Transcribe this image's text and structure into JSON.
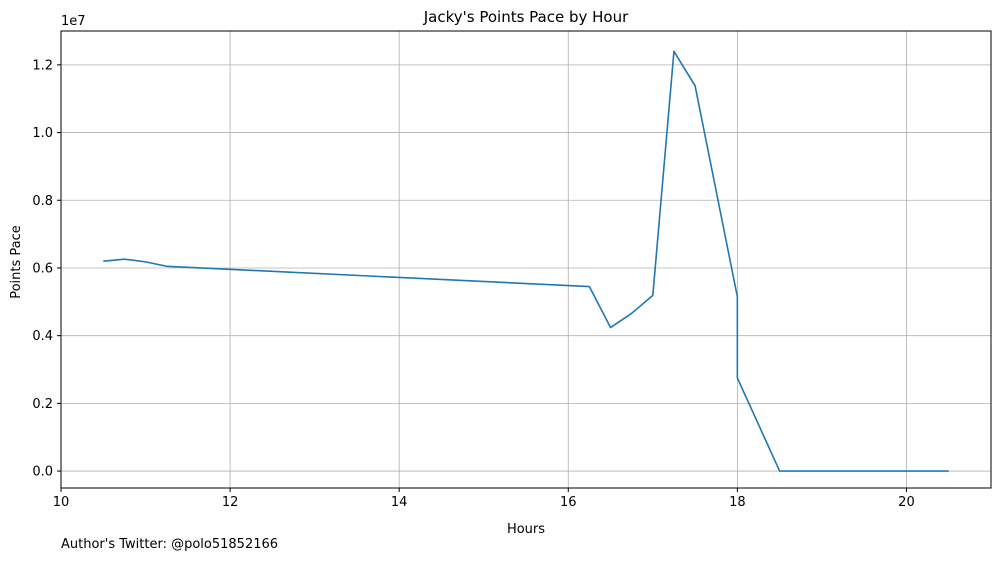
{
  "chart_data": {
    "type": "line",
    "title": "Jacky's Points Pace by Hour",
    "xlabel": "Hours",
    "ylabel": "Points Pace",
    "offset_label": "1e7",
    "xlim": [
      10,
      21
    ],
    "ylim": [
      -0.05,
      1.3
    ],
    "y_scale_multiplier": 10000000,
    "grid": true,
    "x_ticks": [
      10,
      12,
      14,
      16,
      18,
      20
    ],
    "x_tick_labels": [
      "10",
      "12",
      "14",
      "16",
      "18",
      "20"
    ],
    "y_ticks": [
      0.0,
      0.2,
      0.4,
      0.6,
      0.8,
      1.0,
      1.2
    ],
    "y_tick_labels": [
      "0.0",
      "0.2",
      "0.4",
      "0.6",
      "0.8",
      "1.0",
      "1.2"
    ],
    "series": [
      {
        "color": "#1f77b4",
        "x": [
          10.5,
          10.75,
          11.0,
          11.25,
          16.25,
          16.5,
          16.75,
          17.0,
          17.25,
          17.5,
          18.0,
          18.0,
          18.0,
          18.5,
          19.0,
          19.5,
          20.0,
          20.5
        ],
        "y": [
          0.62,
          0.626,
          0.618,
          0.605,
          0.545,
          0.424,
          0.466,
          0.519,
          1.24,
          1.138,
          0.515,
          0.495,
          0.275,
          0.0,
          0.0,
          0.0,
          0.0,
          0.0
        ]
      }
    ]
  },
  "footer": {
    "text": "Author's Twitter: @polo51852166"
  }
}
